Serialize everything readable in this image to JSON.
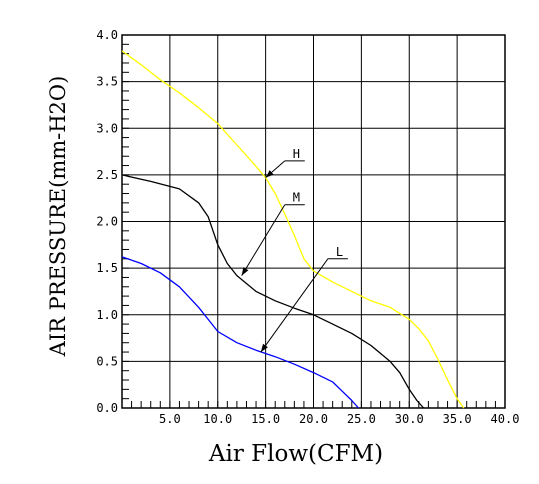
{
  "chart_data": {
    "type": "line",
    "xlabel": "Air Flow(CFM)",
    "ylabel": "AIR PRESSURE(mm-H2O)",
    "xlim": [
      0,
      40
    ],
    "ylim": [
      0,
      4.0
    ],
    "grid": true,
    "x_ticks": [
      {
        "value": 5,
        "label": "5.0"
      },
      {
        "value": 10,
        "label": "10.0"
      },
      {
        "value": 15,
        "label": "15.0"
      },
      {
        "value": 20,
        "label": "20.0"
      },
      {
        "value": 25,
        "label": "25.0"
      },
      {
        "value": 30,
        "label": "30.0"
      },
      {
        "value": 35,
        "label": "35.0"
      },
      {
        "value": 40,
        "label": "40.0"
      }
    ],
    "y_ticks": [
      {
        "value": 0,
        "label": "0.0"
      },
      {
        "value": 0.5,
        "label": "0.5"
      },
      {
        "value": 1.0,
        "label": "1.0"
      },
      {
        "value": 1.5,
        "label": "1.5"
      },
      {
        "value": 2.0,
        "label": "2.0"
      },
      {
        "value": 2.5,
        "label": "2.5"
      },
      {
        "value": 3.0,
        "label": "3.0"
      },
      {
        "value": 3.5,
        "label": "3.5"
      },
      {
        "value": 4.0,
        "label": "4.0"
      }
    ],
    "series": [
      {
        "name": "H",
        "color": "#ffff00",
        "label_at": [
          17.0,
          2.65
        ],
        "arrow_to": [
          15.0,
          2.47
        ],
        "points": [
          [
            0,
            3.83
          ],
          [
            2,
            3.68
          ],
          [
            4,
            3.52
          ],
          [
            6,
            3.38
          ],
          [
            8,
            3.22
          ],
          [
            10,
            3.05
          ],
          [
            12,
            2.82
          ],
          [
            13.5,
            2.65
          ],
          [
            15,
            2.47
          ],
          [
            16,
            2.3
          ],
          [
            17,
            2.08
          ],
          [
            18,
            1.85
          ],
          [
            19,
            1.6
          ],
          [
            20,
            1.47
          ],
          [
            22,
            1.35
          ],
          [
            24,
            1.25
          ],
          [
            26,
            1.15
          ],
          [
            28,
            1.08
          ],
          [
            30,
            0.95
          ],
          [
            31,
            0.85
          ],
          [
            32,
            0.72
          ],
          [
            33,
            0.52
          ],
          [
            34,
            0.3
          ],
          [
            35,
            0.1
          ],
          [
            35.7,
            0.0
          ]
        ]
      },
      {
        "name": "M",
        "color": "#000000",
        "label_at": [
          17.0,
          2.18
        ],
        "arrow_to": [
          12.5,
          1.42
        ],
        "points": [
          [
            0,
            2.5
          ],
          [
            3,
            2.43
          ],
          [
            6,
            2.35
          ],
          [
            8,
            2.2
          ],
          [
            9,
            2.05
          ],
          [
            10,
            1.75
          ],
          [
            11,
            1.55
          ],
          [
            12,
            1.42
          ],
          [
            14,
            1.25
          ],
          [
            16,
            1.15
          ],
          [
            18,
            1.07
          ],
          [
            20,
            1.0
          ],
          [
            22,
            0.9
          ],
          [
            24,
            0.8
          ],
          [
            26,
            0.67
          ],
          [
            28,
            0.5
          ],
          [
            29,
            0.38
          ],
          [
            30,
            0.2
          ],
          [
            30.8,
            0.08
          ],
          [
            31.5,
            0.0
          ]
        ]
      },
      {
        "name": "L",
        "color": "#0000ff",
        "label_at": [
          21.5,
          1.6
        ],
        "arrow_to": [
          14.5,
          0.6
        ],
        "points": [
          [
            0,
            1.62
          ],
          [
            2,
            1.55
          ],
          [
            4,
            1.45
          ],
          [
            6,
            1.3
          ],
          [
            8,
            1.08
          ],
          [
            9,
            0.95
          ],
          [
            10,
            0.82
          ],
          [
            12,
            0.7
          ],
          [
            14,
            0.62
          ],
          [
            16,
            0.55
          ],
          [
            18,
            0.47
          ],
          [
            20,
            0.38
          ],
          [
            22,
            0.28
          ],
          [
            23,
            0.18
          ],
          [
            24,
            0.08
          ],
          [
            24.7,
            0.0
          ]
        ]
      }
    ]
  }
}
